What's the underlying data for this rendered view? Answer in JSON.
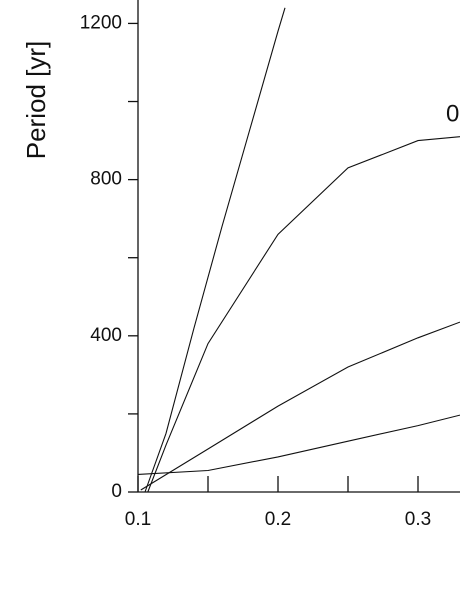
{
  "chart_data": {
    "type": "line",
    "y_label": "Period [yr]",
    "annotations": [
      "0"
    ],
    "xlim": [
      0.1,
      0.33
    ],
    "ylim": [
      0,
      1260
    ],
    "xticks": [
      0.1,
      0.2,
      0.3
    ],
    "minor_xticks": [
      0.15,
      0.25
    ],
    "yticks": [
      0,
      400,
      800,
      1200
    ],
    "minor_yticks": [
      200,
      600,
      1000
    ],
    "series": [
      {
        "color": "#111111",
        "x": [
          0.105,
          0.12,
          0.14,
          0.16,
          0.18,
          0.2,
          0.205
        ],
        "values": [
          0,
          150,
          420,
          680,
          930,
          1180,
          1240
        ]
      },
      {
        "color": "#111111",
        "x": [
          0.107,
          0.12,
          0.15,
          0.2,
          0.25,
          0.3,
          0.33
        ],
        "values": [
          0,
          120,
          380,
          660,
          830,
          900,
          910
        ]
      },
      {
        "color": "#111111",
        "x": [
          0.102,
          0.15,
          0.2,
          0.25,
          0.3,
          0.33
        ],
        "values": [
          5,
          110,
          220,
          320,
          395,
          435
        ]
      },
      {
        "color": "#111111",
        "x": [
          0.1,
          0.15,
          0.2,
          0.25,
          0.3,
          0.33
        ],
        "values": [
          45,
          55,
          90,
          130,
          170,
          197
        ]
      }
    ]
  }
}
